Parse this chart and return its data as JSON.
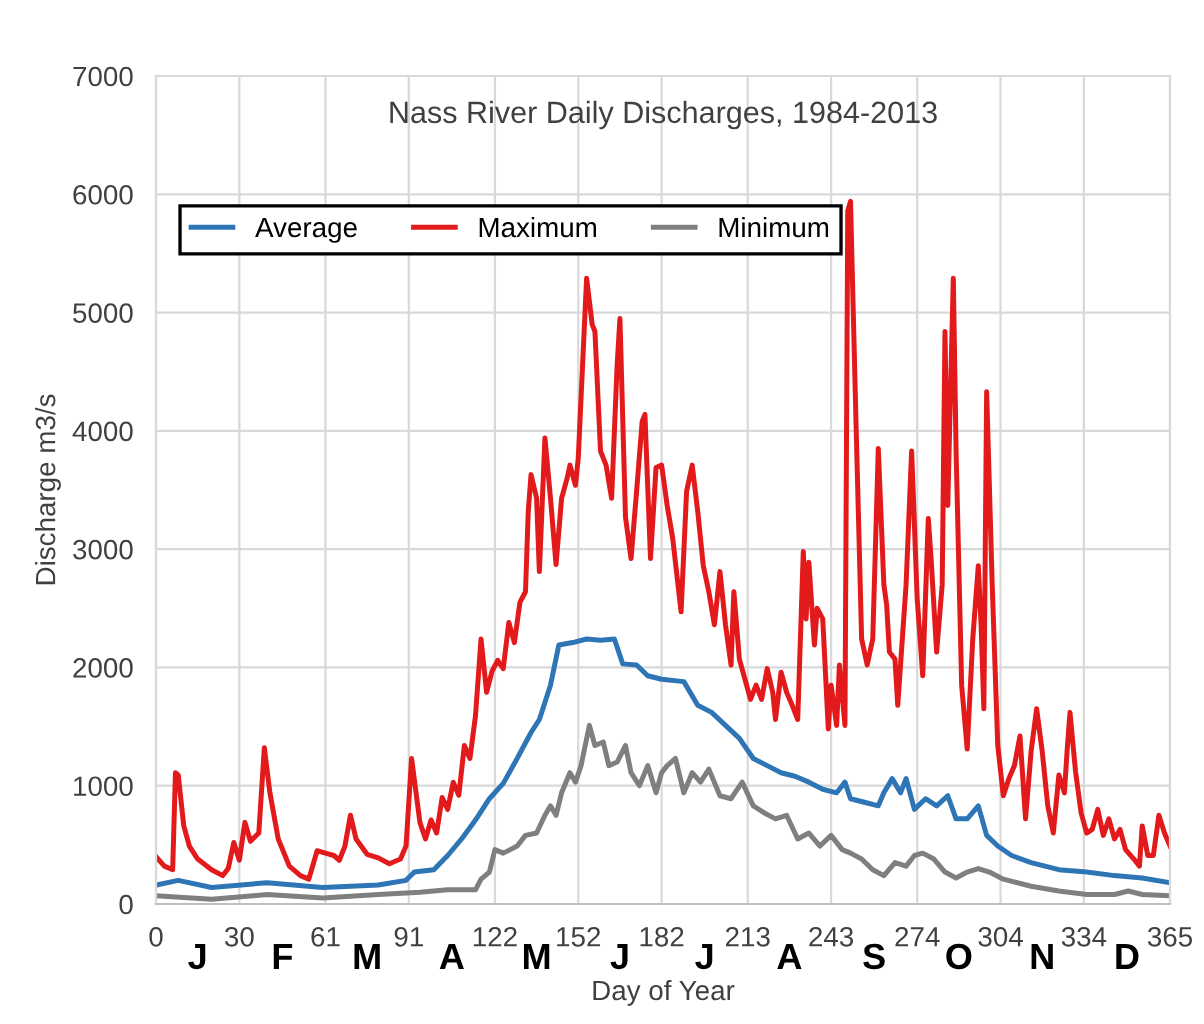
{
  "chart_data": {
    "type": "line",
    "title": "Nass River Daily Discharges, 1984-2013",
    "xlabel": "Day of Year",
    "ylabel": "Discharge m3/s",
    "xlim": [
      0,
      365
    ],
    "xticks": [
      0,
      30,
      61,
      91,
      122,
      152,
      182,
      213,
      243,
      274,
      304,
      334,
      365
    ],
    "ylim": [
      0,
      7000
    ],
    "yticks": [
      0,
      1000,
      2000,
      3000,
      4000,
      5000,
      6000,
      7000
    ],
    "grid": true,
    "legend": "top left",
    "marker": "none",
    "line_style": "solid",
    "annotations": [
      "J",
      "F",
      "M",
      "A",
      "M",
      "J",
      "J",
      "A",
      "S",
      "O",
      "N",
      "D"
    ],
    "series": [
      {
        "name": "Average",
        "color": "#2e75b6",
        "x": [
          0,
          8,
          20,
          40,
          60,
          80,
          90,
          93,
          100,
          105,
          110,
          115,
          120,
          125,
          130,
          135,
          138,
          142,
          145,
          150,
          155,
          160,
          165,
          168,
          173,
          177,
          182,
          190,
          195,
          200,
          205,
          210,
          215,
          220,
          225,
          230,
          235,
          240,
          245,
          248,
          250,
          255,
          260,
          262,
          265,
          268,
          270,
          273,
          277,
          281,
          285,
          288,
          292,
          296,
          299,
          303,
          308,
          315,
          325,
          335,
          345,
          355,
          365
        ],
        "values": [
          160,
          200,
          140,
          180,
          140,
          160,
          200,
          270,
          290,
          410,
          550,
          710,
          890,
          1020,
          1230,
          1450,
          1560,
          1850,
          2190,
          2210,
          2240,
          2230,
          2240,
          2030,
          2020,
          1930,
          1900,
          1880,
          1680,
          1620,
          1510,
          1400,
          1230,
          1170,
          1110,
          1080,
          1030,
          970,
          940,
          1030,
          890,
          860,
          830,
          940,
          1060,
          940,
          1060,
          800,
          890,
          830,
          915,
          720,
          720,
          830,
          580,
          490,
          410,
          350,
          290,
          270,
          240,
          220,
          180
        ]
      },
      {
        "name": "Maximum",
        "color": "#e31a1c",
        "x": [
          0,
          3,
          6,
          7,
          8,
          10,
          12,
          15,
          20,
          24,
          26,
          28,
          30,
          32,
          34,
          37,
          39,
          41,
          44,
          48,
          52,
          55,
          58,
          61,
          64,
          66,
          68,
          70,
          72,
          76,
          80,
          84,
          88,
          90,
          92,
          95,
          97,
          99,
          101,
          103,
          105,
          107,
          109,
          111,
          113,
          115,
          117,
          119,
          121,
          123,
          125,
          127,
          129,
          131,
          133,
          134,
          135,
          137,
          138,
          140,
          142,
          144,
          146,
          148,
          149,
          151,
          152,
          155,
          157,
          158,
          160,
          162,
          164,
          166,
          167,
          169,
          171,
          173,
          175,
          176,
          178,
          180,
          182,
          184,
          186,
          189,
          191,
          193,
          195,
          197,
          199,
          201,
          203,
          205,
          207,
          208,
          210,
          212,
          214,
          216,
          218,
          220,
          222,
          223,
          225,
          227,
          229,
          231,
          233,
          234,
          235,
          237,
          238,
          240,
          242,
          243,
          245,
          246,
          248,
          249,
          250,
          252,
          254,
          256,
          258,
          260,
          262,
          263,
          264,
          266,
          267,
          268,
          270,
          272,
          274,
          276,
          278,
          279,
          281,
          283,
          284,
          285,
          287,
          288,
          290,
          292,
          294,
          296,
          297,
          298,
          299,
          301,
          303,
          305,
          307,
          309,
          311,
          313,
          315,
          317,
          319,
          321,
          323,
          325,
          327,
          328,
          329,
          331,
          333,
          335,
          337,
          339,
          341,
          343,
          345,
          347,
          349,
          352,
          354,
          355,
          357,
          359,
          361,
          363,
          365
        ],
        "values": [
          400,
          320,
          290,
          1110,
          1090,
          660,
          490,
          380,
          290,
          240,
          300,
          520,
          370,
          690,
          530,
          600,
          1320,
          940,
          550,
          320,
          240,
          210,
          450,
          430,
          410,
          370,
          490,
          750,
          550,
          420,
          390,
          340,
          380,
          490,
          1230,
          690,
          550,
          710,
          600,
          900,
          800,
          1030,
          920,
          1340,
          1230,
          1590,
          2240,
          1790,
          1970,
          2060,
          1990,
          2380,
          2210,
          2550,
          2640,
          3320,
          3630,
          3430,
          2810,
          3940,
          3430,
          2870,
          3430,
          3600,
          3710,
          3540,
          3770,
          5290,
          4900,
          4840,
          3830,
          3710,
          3430,
          4560,
          4950,
          3270,
          2920,
          3490,
          4080,
          4140,
          2920,
          3690,
          3710,
          3370,
          3090,
          2470,
          3490,
          3710,
          3320,
          2860,
          2640,
          2360,
          2810,
          2360,
          2020,
          2640,
          2070,
          1900,
          1730,
          1850,
          1730,
          1990,
          1790,
          1560,
          1960,
          1790,
          1680,
          1560,
          2980,
          2410,
          2890,
          2190,
          2500,
          2410,
          1480,
          1850,
          1510,
          2020,
          1510,
          5860,
          5940,
          4050,
          2240,
          2020,
          2240,
          3850,
          2700,
          2530,
          2130,
          2070,
          1680,
          2020,
          2700,
          3830,
          2580,
          1930,
          3260,
          2920,
          2130,
          2700,
          4840,
          3370,
          5290,
          3830,
          1850,
          1310,
          2240,
          2860,
          2360,
          1650,
          4330,
          2700,
          1340,
          915,
          1060,
          1170,
          1420,
          720,
          1290,
          1650,
          1290,
          830,
          600,
          1090,
          940,
          1310,
          1620,
          1120,
          770,
          600,
          630,
          800,
          580,
          720,
          550,
          630,
          460,
          380,
          320,
          660,
          410,
          410,
          750,
          600,
          490
        ]
      },
      {
        "name": "Minimum",
        "color": "#7f7f7f",
        "x": [
          0,
          20,
          40,
          60,
          80,
          95,
          105,
          115,
          117,
          120,
          122,
          125,
          130,
          133,
          137,
          140,
          142,
          144,
          146,
          149,
          151,
          153,
          156,
          158,
          161,
          163,
          166,
          169,
          171,
          174,
          177,
          180,
          182,
          184,
          187,
          190,
          193,
          196,
          199,
          203,
          207,
          211,
          215,
          219,
          223,
          227,
          231,
          235,
          239,
          243,
          247,
          250,
          254,
          258,
          262,
          266,
          270,
          273,
          276,
          280,
          284,
          288,
          292,
          296,
          300,
          305,
          315,
          325,
          335,
          345,
          350,
          355,
          365
        ],
        "values": [
          70,
          40,
          80,
          50,
          80,
          100,
          120,
          120,
          210,
          270,
          460,
          430,
          490,
          580,
          600,
          750,
          830,
          750,
          940,
          1110,
          1030,
          1170,
          1510,
          1340,
          1370,
          1170,
          1200,
          1340,
          1110,
          1000,
          1170,
          940,
          1110,
          1170,
          1230,
          940,
          1110,
          1030,
          1140,
          915,
          890,
          1030,
          830,
          770,
          720,
          750,
          550,
          600,
          490,
          580,
          460,
          430,
          380,
          290,
          240,
          350,
          320,
          410,
          430,
          380,
          270,
          220,
          270,
          300,
          270,
          210,
          150,
          110,
          80,
          80,
          110,
          80,
          70
        ]
      }
    ]
  }
}
